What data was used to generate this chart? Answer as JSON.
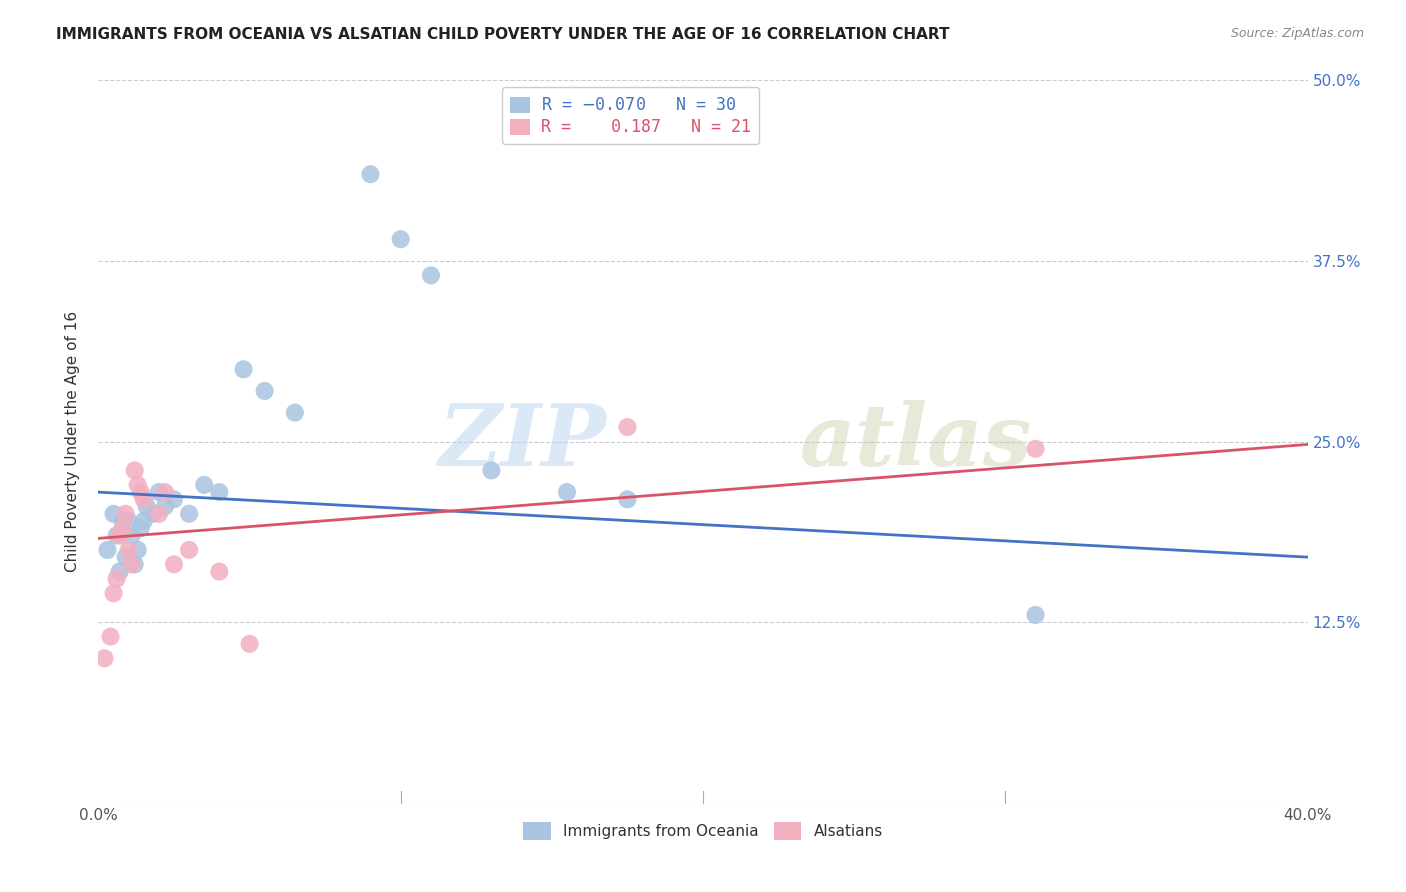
{
  "title": "IMMIGRANTS FROM OCEANIA VS ALSATIAN CHILD POVERTY UNDER THE AGE OF 16 CORRELATION CHART",
  "source": "Source: ZipAtlas.com",
  "ylabel": "Child Poverty Under the Age of 16",
  "xlim": [
    0.0,
    0.4
  ],
  "ylim": [
    0.0,
    0.5
  ],
  "x_ticks": [
    0.0,
    0.1,
    0.2,
    0.3,
    0.4
  ],
  "x_tick_labels": [
    "0.0%",
    "",
    "",
    "",
    "40.0%"
  ],
  "y_ticks_right": [
    0.0,
    0.125,
    0.25,
    0.375,
    0.5
  ],
  "y_tick_labels_right": [
    "",
    "12.5%",
    "25.0%",
    "37.5%",
    "50.0%"
  ],
  "blue_R": "-0.070",
  "blue_N": "30",
  "pink_R": "0.187",
  "pink_N": "21",
  "blue_color": "#a8c4e0",
  "pink_color": "#f2afc0",
  "blue_line_color": "#4472C4",
  "pink_line_color": "#D9536A",
  "watermark_zip": "ZIP",
  "watermark_atlas": "atlas",
  "blue_line_x": [
    0.0,
    0.4
  ],
  "blue_line_y": [
    0.215,
    0.17
  ],
  "pink_line_x": [
    0.0,
    0.4
  ],
  "pink_line_y": [
    0.183,
    0.248
  ],
  "blue_scatter_x": [
    0.003,
    0.005,
    0.006,
    0.007,
    0.008,
    0.009,
    0.01,
    0.011,
    0.012,
    0.013,
    0.014,
    0.015,
    0.016,
    0.018,
    0.02,
    0.022,
    0.025,
    0.03,
    0.035,
    0.04,
    0.048,
    0.055,
    0.065,
    0.09,
    0.1,
    0.11,
    0.13,
    0.155,
    0.175,
    0.31
  ],
  "blue_scatter_y": [
    0.175,
    0.2,
    0.185,
    0.16,
    0.195,
    0.17,
    0.195,
    0.185,
    0.165,
    0.175,
    0.19,
    0.195,
    0.205,
    0.2,
    0.215,
    0.205,
    0.21,
    0.2,
    0.22,
    0.215,
    0.3,
    0.285,
    0.27,
    0.435,
    0.39,
    0.365,
    0.23,
    0.215,
    0.21,
    0.13
  ],
  "pink_scatter_x": [
    0.002,
    0.004,
    0.005,
    0.006,
    0.007,
    0.008,
    0.009,
    0.01,
    0.011,
    0.012,
    0.013,
    0.014,
    0.015,
    0.02,
    0.022,
    0.025,
    0.03,
    0.04,
    0.05,
    0.175,
    0.31
  ],
  "pink_scatter_y": [
    0.1,
    0.115,
    0.145,
    0.155,
    0.185,
    0.19,
    0.2,
    0.175,
    0.165,
    0.23,
    0.22,
    0.215,
    0.21,
    0.2,
    0.215,
    0.165,
    0.175,
    0.16,
    0.11,
    0.26,
    0.245
  ],
  "background_color": "#ffffff",
  "grid_color": "#cccccc"
}
